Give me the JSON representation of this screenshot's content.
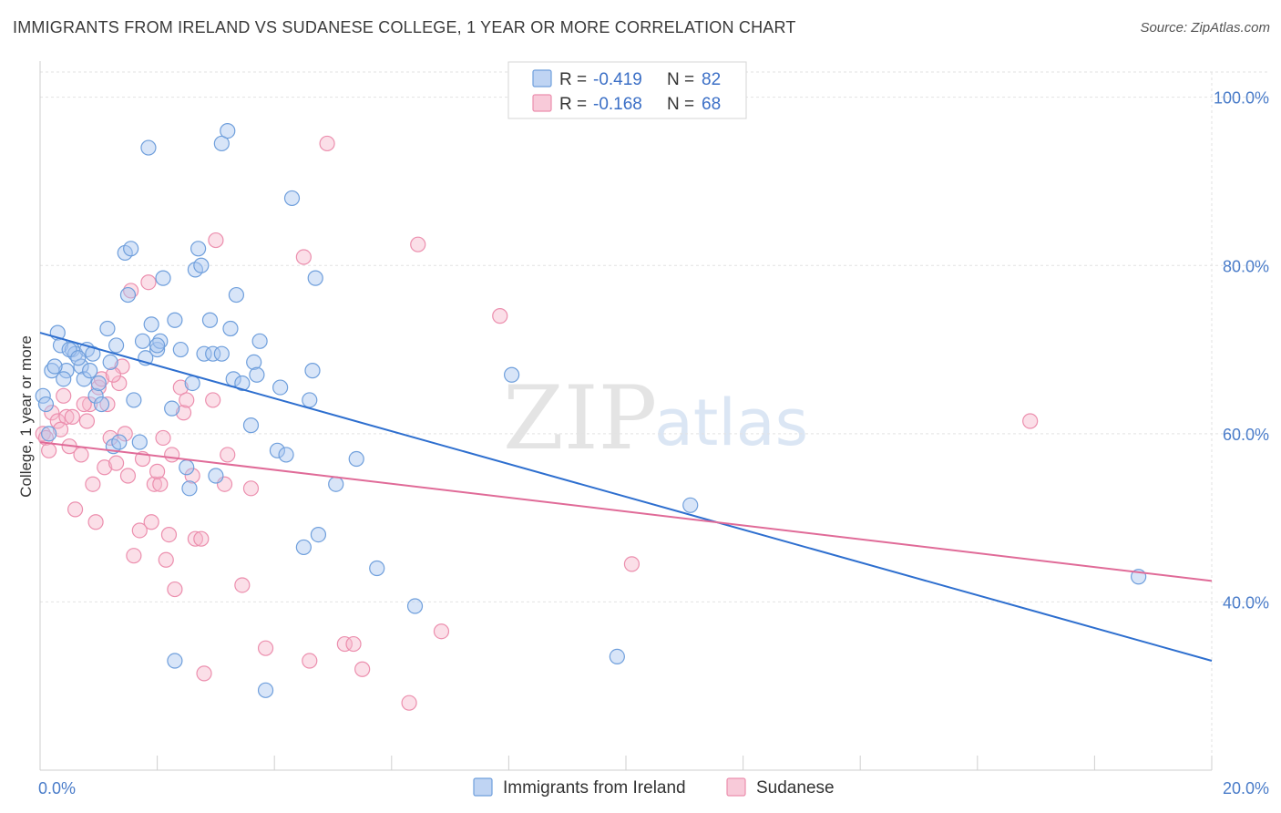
{
  "header": {
    "title": "IMMIGRANTS FROM IRELAND VS SUDANESE COLLEGE, 1 YEAR OR MORE CORRELATION CHART",
    "source": "Source: ZipAtlas.com"
  },
  "watermark": {
    "part1": "ZIP",
    "part2": "atlas"
  },
  "legend_top": [
    {
      "r_label": "R = ",
      "r_value": "-0.419",
      "n_label": "N = ",
      "n_value": "82"
    },
    {
      "r_label": "R = ",
      "r_value": "-0.168",
      "n_label": "N = ",
      "n_value": "68"
    }
  ],
  "colors": {
    "blue_fill": "#a9c6ef",
    "blue_stroke": "#6f9fdc",
    "blue_line": "#2e6fcf",
    "pink_fill": "#f6b8cc",
    "pink_stroke": "#ec8fae",
    "pink_line": "#e06b98",
    "grid": "#e2e2e2",
    "axis_text": "#4a7cc9"
  },
  "chart_data": {
    "type": "scatter",
    "title": "IMMIGRANTS FROM IRELAND VS SUDANESE COLLEGE, 1 YEAR OR MORE CORRELATION CHART",
    "xlabel": "",
    "ylabel": "College, 1 year or more",
    "xlim": [
      0,
      20
    ],
    "ylim": [
      20,
      103
    ],
    "x_tick_labels": [
      "0.0%",
      "20.0%"
    ],
    "x_tick_values": [
      0,
      20
    ],
    "y_tick_labels": [
      "40.0%",
      "60.0%",
      "80.0%",
      "100.0%"
    ],
    "y_tick_values": [
      40,
      60,
      80,
      100
    ],
    "grid": true,
    "legend_position": "top-center",
    "series": [
      {
        "name": "Immigrants from Ireland",
        "color": "#a9c6ef",
        "trend": {
          "x": [
            0,
            20
          ],
          "y": [
            72.0,
            33.0
          ]
        },
        "points": [
          [
            0.05,
            64.5
          ],
          [
            0.1,
            63.5
          ],
          [
            0.15,
            60.0
          ],
          [
            0.2,
            67.5
          ],
          [
            0.3,
            72.0
          ],
          [
            0.35,
            70.5
          ],
          [
            0.45,
            67.5
          ],
          [
            0.55,
            70.0
          ],
          [
            0.6,
            69.5
          ],
          [
            0.7,
            68.0
          ],
          [
            0.75,
            66.5
          ],
          [
            0.8,
            70.0
          ],
          [
            0.85,
            67.5
          ],
          [
            0.9,
            69.5
          ],
          [
            0.95,
            64.5
          ],
          [
            1.05,
            63.5
          ],
          [
            1.15,
            72.5
          ],
          [
            1.2,
            68.5
          ],
          [
            1.25,
            58.5
          ],
          [
            1.35,
            59.0
          ],
          [
            1.45,
            81.5
          ],
          [
            1.5,
            76.5
          ],
          [
            1.55,
            82.0
          ],
          [
            1.6,
            64.0
          ],
          [
            1.7,
            59.0
          ],
          [
            1.75,
            71.0
          ],
          [
            1.8,
            69.0
          ],
          [
            1.85,
            94.0
          ],
          [
            1.9,
            73.0
          ],
          [
            2.0,
            70.0
          ],
          [
            2.05,
            71.0
          ],
          [
            2.1,
            78.5
          ],
          [
            2.25,
            63.0
          ],
          [
            2.3,
            73.5
          ],
          [
            2.4,
            70.0
          ],
          [
            2.5,
            56.0
          ],
          [
            2.55,
            53.5
          ],
          [
            2.6,
            66.0
          ],
          [
            2.65,
            79.5
          ],
          [
            2.7,
            82.0
          ],
          [
            2.75,
            80.0
          ],
          [
            2.8,
            69.5
          ],
          [
            2.9,
            73.5
          ],
          [
            2.95,
            69.5
          ],
          [
            3.0,
            55.0
          ],
          [
            3.1,
            69.5
          ],
          [
            3.1,
            94.5
          ],
          [
            3.2,
            96.0
          ],
          [
            3.25,
            72.5
          ],
          [
            3.3,
            66.5
          ],
          [
            3.35,
            76.5
          ],
          [
            3.45,
            66.0
          ],
          [
            3.6,
            61.0
          ],
          [
            3.65,
            68.5
          ],
          [
            3.7,
            67.0
          ],
          [
            3.75,
            71.0
          ],
          [
            4.05,
            58.0
          ],
          [
            4.1,
            65.5
          ],
          [
            4.2,
            57.5
          ],
          [
            4.3,
            88.0
          ],
          [
            4.5,
            46.5
          ],
          [
            4.6,
            64.0
          ],
          [
            4.65,
            67.5
          ],
          [
            4.7,
            78.5
          ],
          [
            4.75,
            48.0
          ],
          [
            5.05,
            54.0
          ],
          [
            5.4,
            57.0
          ],
          [
            5.75,
            44.0
          ],
          [
            6.4,
            39.5
          ],
          [
            8.05,
            67.0
          ],
          [
            9.85,
            33.5
          ],
          [
            11.1,
            51.5
          ],
          [
            18.75,
            43.0
          ],
          [
            2.3,
            33.0
          ],
          [
            3.85,
            29.5
          ],
          [
            2.0,
            70.5
          ],
          [
            1.3,
            70.5
          ],
          [
            0.5,
            70.0
          ],
          [
            0.65,
            69.0
          ],
          [
            0.25,
            68.0
          ],
          [
            1.0,
            66.0
          ],
          [
            0.4,
            66.5
          ]
        ]
      },
      {
        "name": "Sudanese",
        "color": "#f6b8cc",
        "trend": {
          "x": [
            0,
            20
          ],
          "y": [
            59.0,
            42.5
          ]
        },
        "points": [
          [
            0.05,
            60.0
          ],
          [
            0.1,
            59.5
          ],
          [
            0.2,
            62.5
          ],
          [
            0.3,
            61.5
          ],
          [
            0.4,
            64.5
          ],
          [
            0.45,
            62.0
          ],
          [
            0.5,
            58.5
          ],
          [
            0.6,
            51.0
          ],
          [
            0.7,
            57.5
          ],
          [
            0.8,
            61.5
          ],
          [
            0.85,
            63.5
          ],
          [
            0.9,
            54.0
          ],
          [
            0.95,
            49.5
          ],
          [
            1.0,
            65.5
          ],
          [
            1.05,
            66.5
          ],
          [
            1.1,
            56.0
          ],
          [
            1.15,
            63.5
          ],
          [
            1.2,
            59.5
          ],
          [
            1.3,
            56.5
          ],
          [
            1.35,
            66.0
          ],
          [
            1.4,
            68.0
          ],
          [
            1.45,
            60.0
          ],
          [
            1.5,
            55.0
          ],
          [
            1.55,
            77.0
          ],
          [
            1.6,
            45.5
          ],
          [
            1.7,
            48.5
          ],
          [
            1.75,
            57.0
          ],
          [
            1.85,
            78.0
          ],
          [
            1.9,
            49.5
          ],
          [
            1.95,
            54.0
          ],
          [
            2.05,
            54.0
          ],
          [
            2.1,
            59.5
          ],
          [
            2.15,
            45.0
          ],
          [
            2.2,
            48.0
          ],
          [
            2.25,
            57.5
          ],
          [
            2.3,
            41.5
          ],
          [
            2.4,
            65.5
          ],
          [
            2.45,
            62.5
          ],
          [
            2.5,
            64.0
          ],
          [
            2.6,
            55.0
          ],
          [
            2.65,
            47.5
          ],
          [
            2.75,
            47.5
          ],
          [
            2.8,
            31.5
          ],
          [
            2.95,
            64.0
          ],
          [
            3.0,
            83.0
          ],
          [
            3.15,
            54.0
          ],
          [
            3.2,
            57.5
          ],
          [
            3.45,
            42.0
          ],
          [
            3.6,
            53.5
          ],
          [
            3.85,
            34.5
          ],
          [
            4.5,
            81.0
          ],
          [
            4.6,
            33.0
          ],
          [
            4.9,
            94.5
          ],
          [
            5.2,
            35.0
          ],
          [
            5.35,
            35.0
          ],
          [
            5.5,
            32.0
          ],
          [
            6.3,
            28.0
          ],
          [
            6.45,
            82.5
          ],
          [
            6.85,
            36.5
          ],
          [
            7.85,
            74.0
          ],
          [
            10.1,
            44.5
          ],
          [
            16.9,
            61.5
          ],
          [
            0.15,
            58.0
          ],
          [
            0.35,
            60.5
          ],
          [
            0.75,
            63.5
          ],
          [
            1.25,
            67.0
          ],
          [
            2.0,
            55.5
          ],
          [
            0.55,
            62.0
          ]
        ]
      }
    ]
  },
  "legend_bottom": [
    {
      "label": "Immigrants from Ireland"
    },
    {
      "label": "Sudanese"
    }
  ]
}
